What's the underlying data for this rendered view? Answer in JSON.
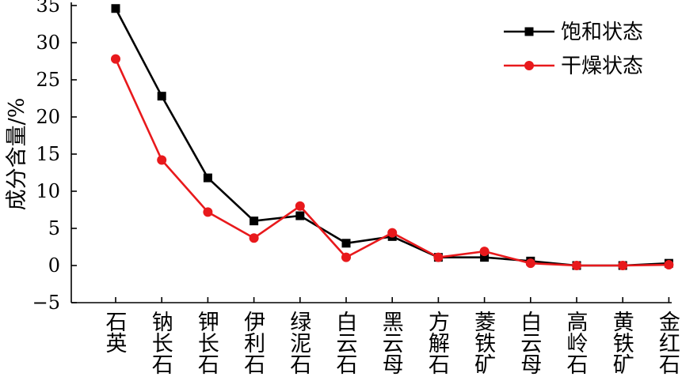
{
  "chart_data": {
    "type": "line",
    "categories": [
      "石英",
      "钠长石",
      "钾长石",
      "伊利石",
      "绿泥石",
      "白云石",
      "黑云母",
      "方解石",
      "菱铁矿",
      "白云母",
      "高岭石",
      "黄铁矿",
      "金红石"
    ],
    "series": [
      {
        "name": "饱和状态",
        "color": "#000000",
        "marker": "square",
        "values": [
          34.6,
          22.8,
          11.8,
          6.0,
          6.7,
          3.0,
          3.9,
          1.1,
          1.1,
          0.6,
          0.0,
          0.0,
          0.3
        ]
      },
      {
        "name": "干燥状态",
        "color": "#e8191c",
        "marker": "circle",
        "values": [
          27.8,
          14.2,
          7.2,
          3.7,
          8.0,
          1.1,
          4.4,
          1.1,
          1.9,
          0.3,
          0.0,
          0.0,
          0.1
        ]
      }
    ],
    "ylabel": "成分含量/%",
    "xlabel": "",
    "ylim": [
      -5,
      35
    ],
    "yticks": [
      35,
      30,
      25,
      20,
      15,
      10,
      5,
      0,
      -5
    ],
    "ytick_labels": [
      "35",
      "30",
      "25",
      "20",
      "15",
      "10",
      "5",
      "0",
      "−5"
    ],
    "grid": false,
    "legend_position": "top-right"
  }
}
